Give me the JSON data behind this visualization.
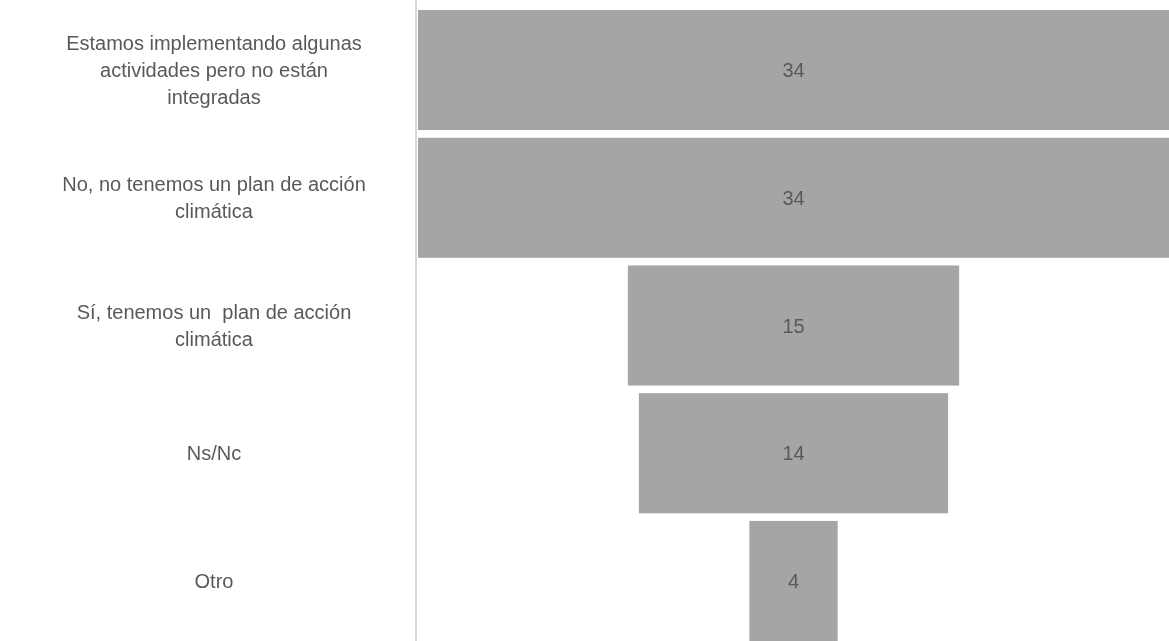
{
  "chart_data": {
    "type": "other",
    "categories": [
      "Estamos implementando algunas actividades pero no están integradas",
      "No, no tenemos un plan de acción climática",
      "Sí, tenemos un  plan de acción climática",
      "Ns/Nc",
      "Otro"
    ],
    "values": [
      34,
      34,
      15,
      14,
      4
    ],
    "color": "#a5a5a5",
    "data_labels": true
  }
}
